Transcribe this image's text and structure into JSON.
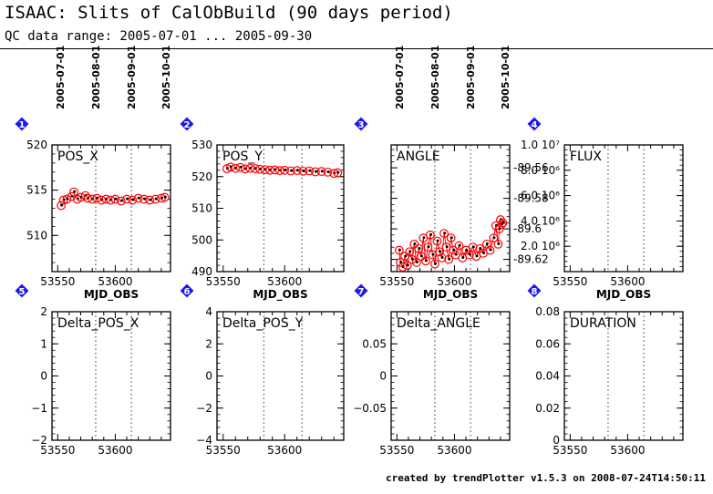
{
  "header": {
    "title": "ISAAC: Slits of CalObBuild (90 days period)",
    "subtitle": "QC data range: 2005-07-01 ... 2005-09-30"
  },
  "footer": "created by trendPlotter v1.5.3 on 2008-07-24T14:50:11",
  "colors": {
    "marker": "#ff0000",
    "dot": "#000000",
    "badge": "#1a1ae6"
  },
  "date_ticks": {
    "labels": [
      "2005-07-01",
      "2005-08-01",
      "2005-09-01",
      "2005-10-01"
    ],
    "mjd": [
      53552,
      53583,
      53614,
      53644
    ]
  },
  "chart_data": [
    {
      "type": "scatter",
      "badge": "1",
      "label": "POS_X",
      "xlabel": "MJD_OBS",
      "xlim": [
        53545,
        53648
      ],
      "ylim": [
        506,
        520
      ],
      "yticks": [
        510,
        515,
        520
      ],
      "ytick_labels": [
        "510",
        "515",
        "520"
      ],
      "xticks": [
        53550,
        53600
      ],
      "xtick_labels": [
        "53550",
        "53600"
      ],
      "points": [
        [
          53553,
          513.3
        ],
        [
          53555,
          513.9
        ],
        [
          53558,
          514.0
        ],
        [
          53562,
          514.3
        ],
        [
          53564,
          514.8
        ],
        [
          53567,
          514.0
        ],
        [
          53570,
          514.2
        ],
        [
          53574,
          514.4
        ],
        [
          53576,
          514.1
        ],
        [
          53580,
          514.0
        ],
        [
          53584,
          514.1
        ],
        [
          53588,
          513.9
        ],
        [
          53592,
          514.0
        ],
        [
          53596,
          513.9
        ],
        [
          53600,
          514.0
        ],
        [
          53605,
          513.8
        ],
        [
          53610,
          514.0
        ],
        [
          53615,
          513.9
        ],
        [
          53620,
          514.1
        ],
        [
          53625,
          514.0
        ],
        [
          53630,
          513.9
        ],
        [
          53635,
          514.0
        ],
        [
          53640,
          514.1
        ],
        [
          53643,
          514.2
        ]
      ]
    },
    {
      "type": "scatter",
      "badge": "2",
      "label": "POS_Y",
      "xlabel": "MJD_OBS",
      "xlim": [
        53545,
        53648
      ],
      "ylim": [
        490,
        530
      ],
      "yticks": [
        490,
        500,
        510,
        520,
        530
      ],
      "ytick_labels": [
        "490",
        "500",
        "510",
        "520",
        "530"
      ],
      "xticks": [
        53550,
        53600
      ],
      "xtick_labels": [
        "53550",
        "53600"
      ],
      "points": [
        [
          53553,
          522.5
        ],
        [
          53556,
          523.0
        ],
        [
          53560,
          522.6
        ],
        [
          53564,
          522.9
        ],
        [
          53568,
          522.4
        ],
        [
          53572,
          522.6
        ],
        [
          53576,
          522.5
        ],
        [
          53580,
          522.3
        ],
        [
          53584,
          522.2
        ],
        [
          53588,
          522.0
        ],
        [
          53592,
          522.1
        ],
        [
          53596,
          521.9
        ],
        [
          53600,
          522.0
        ],
        [
          53605,
          521.8
        ],
        [
          53610,
          521.9
        ],
        [
          53615,
          521.7
        ],
        [
          53620,
          521.8
        ],
        [
          53625,
          521.5
        ],
        [
          53630,
          521.6
        ],
        [
          53635,
          521.4
        ],
        [
          53640,
          521.0
        ],
        [
          53643,
          521.2
        ]
      ]
    },
    {
      "type": "line",
      "badge": "3",
      "label": "ANGLE",
      "xlabel": "MJD_OBS",
      "xlim": [
        53545,
        53648
      ],
      "ylim": [
        -89.628,
        -89.545
      ],
      "yticks": [
        -89.62,
        -89.6,
        -89.58,
        -89.56
      ],
      "ytick_labels": [
        "-89.62",
        "-89.6",
        "-89.58",
        "-89.56"
      ],
      "xticks": [
        53550,
        53600
      ],
      "xtick_labels": [
        "53550",
        "53600"
      ],
      "points": [
        [
          53552,
          -89.614
        ],
        [
          53553,
          -89.622
        ],
        [
          53555,
          -89.625
        ],
        [
          53557,
          -89.618
        ],
        [
          53559,
          -89.624
        ],
        [
          53561,
          -89.615
        ],
        [
          53563,
          -89.62
        ],
        [
          53565,
          -89.61
        ],
        [
          53567,
          -89.622
        ],
        [
          53569,
          -89.613
        ],
        [
          53571,
          -89.618
        ],
        [
          53573,
          -89.606
        ],
        [
          53575,
          -89.621
        ],
        [
          53577,
          -89.612
        ],
        [
          53579,
          -89.604
        ],
        [
          53581,
          -89.617
        ],
        [
          53583,
          -89.623
        ],
        [
          53585,
          -89.608
        ],
        [
          53587,
          -89.615
        ],
        [
          53589,
          -89.619
        ],
        [
          53591,
          -89.603
        ],
        [
          53593,
          -89.612
        ],
        [
          53595,
          -89.62
        ],
        [
          53597,
          -89.606
        ],
        [
          53599,
          -89.614
        ],
        [
          53601,
          -89.617
        ],
        [
          53604,
          -89.611
        ],
        [
          53607,
          -89.619
        ],
        [
          53610,
          -89.614
        ],
        [
          53613,
          -89.617
        ],
        [
          53616,
          -89.612
        ],
        [
          53619,
          -89.618
        ],
        [
          53622,
          -89.613
        ],
        [
          53625,
          -89.616
        ],
        [
          53628,
          -89.61
        ],
        [
          53631,
          -89.614
        ],
        [
          53634,
          -89.606
        ],
        [
          53636,
          -89.598
        ],
        [
          53638,
          -89.61
        ],
        [
          53639,
          -89.6
        ],
        [
          53640,
          -89.594
        ],
        [
          53641,
          -89.597
        ],
        [
          53642,
          -89.596
        ]
      ]
    },
    {
      "type": "scatter",
      "badge": "4",
      "label": "FLUX",
      "xlabel": "MJD_OBS",
      "xlim": [
        53545,
        53648
      ],
      "ylim": [
        0,
        10000000
      ],
      "yticks": [
        2000000,
        4000000,
        6000000,
        8000000,
        10000000
      ],
      "ytick_labels": [
        "2.0 10⁶",
        "4.0 10⁶",
        "6.0 10⁶",
        "8.0 10⁶",
        "1.0 10⁷"
      ],
      "xticks": [
        53550,
        53600
      ],
      "xtick_labels": [
        "53550",
        "53600"
      ],
      "points": []
    },
    {
      "type": "scatter",
      "badge": "5",
      "label": "Delta_POS_X",
      "xlabel": "",
      "xlim": [
        53545,
        53648
      ],
      "ylim": [
        -2,
        2
      ],
      "yticks": [
        -2,
        -1,
        0,
        1,
        2
      ],
      "ytick_labels": [
        "−2",
        "−1",
        "0",
        "1",
        "2"
      ],
      "xticks": [
        53550,
        53600
      ],
      "xtick_labels": [
        "53550",
        "53600"
      ],
      "points": []
    },
    {
      "type": "scatter",
      "badge": "6",
      "label": "Delta_POS_Y",
      "xlabel": "",
      "xlim": [
        53545,
        53648
      ],
      "ylim": [
        -4,
        4
      ],
      "yticks": [
        -4,
        -2,
        0,
        2,
        4
      ],
      "ytick_labels": [
        "−4",
        "−2",
        "0",
        "2",
        "4"
      ],
      "xticks": [
        53550,
        53600
      ],
      "xtick_labels": [
        "53550",
        "53600"
      ],
      "points": []
    },
    {
      "type": "scatter",
      "badge": "7",
      "label": "Delta_ANGLE",
      "xlabel": "",
      "xlim": [
        53545,
        53648
      ],
      "ylim": [
        -0.1,
        0.1
      ],
      "yticks": [
        -0.05,
        0,
        0.05
      ],
      "ytick_labels": [
        "−0.05",
        "0",
        "0.05"
      ],
      "xticks": [
        53550,
        53600
      ],
      "xtick_labels": [
        "53550",
        "53600"
      ],
      "points": []
    },
    {
      "type": "scatter",
      "badge": "8",
      "label": "DURATION",
      "xlabel": "",
      "xlim": [
        53545,
        53648
      ],
      "ylim": [
        0,
        0.08
      ],
      "yticks": [
        0,
        0.02,
        0.04,
        0.06,
        0.08
      ],
      "ytick_labels": [
        "0",
        "0.02",
        "0.04",
        "0.06",
        "0.08"
      ],
      "xticks": [
        53550,
        53600
      ],
      "xtick_labels": [
        "53550",
        "53600"
      ],
      "points": []
    }
  ]
}
